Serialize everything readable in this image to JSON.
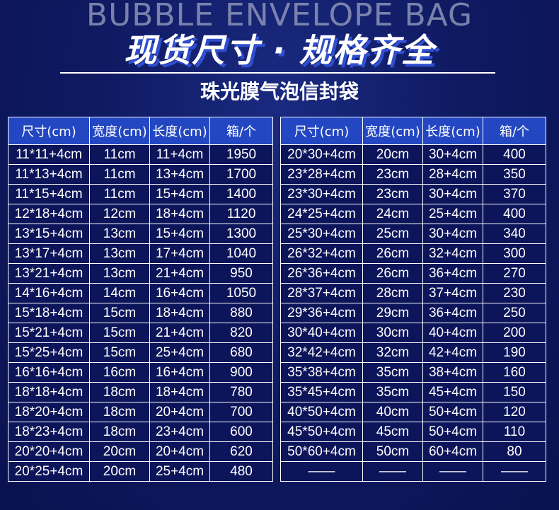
{
  "header": {
    "background_text": "BUBBLE ENVELOPE BAG",
    "title": "现货尺寸 · 规格齐全",
    "subtitle": "珠光膜气泡信封袋"
  },
  "columns": [
    "尺寸(cm)",
    "宽度(cm)",
    "长度(cm)",
    "箱/个"
  ],
  "left_table": [
    [
      "11*11+4cm",
      "11cm",
      "11+4cm",
      "1950"
    ],
    [
      "11*13+4cm",
      "11cm",
      "13+4cm",
      "1700"
    ],
    [
      "11*15+4cm",
      "11cm",
      "15+4cm",
      "1400"
    ],
    [
      "12*18+4cm",
      "12cm",
      "18+4cm",
      "1120"
    ],
    [
      "13*15+4cm",
      "13cm",
      "15+4cm",
      "1300"
    ],
    [
      "13*17+4cm",
      "13cm",
      "17+4cm",
      "1040"
    ],
    [
      "13*21+4cm",
      "13cm",
      "21+4cm",
      "950"
    ],
    [
      "14*16+4cm",
      "14cm",
      "16+4cm",
      "1050"
    ],
    [
      "15*18+4cm",
      "15cm",
      "18+4cm",
      "880"
    ],
    [
      "15*21+4cm",
      "15cm",
      "21+4cm",
      "820"
    ],
    [
      "15*25+4cm",
      "15cm",
      "25+4cm",
      "680"
    ],
    [
      "16*16+4cm",
      "16cm",
      "16+4cm",
      "900"
    ],
    [
      "18*18+4cm",
      "18cm",
      "18+4cm",
      "780"
    ],
    [
      "18*20+4cm",
      "18cm",
      "20+4cm",
      "700"
    ],
    [
      "18*23+4cm",
      "18cm",
      "23+4cm",
      "600"
    ],
    [
      "20*20+4cm",
      "20cm",
      "20+4cm",
      "620"
    ],
    [
      "20*25+4cm",
      "20cm",
      "25+4cm",
      "480"
    ]
  ],
  "right_table": [
    [
      "20*30+4cm",
      "20cm",
      "30+4cm",
      "400"
    ],
    [
      "23*28+4cm",
      "23cm",
      "28+4cm",
      "350"
    ],
    [
      "23*30+4cm",
      "23cm",
      "30+4cm",
      "370"
    ],
    [
      "24*25+4cm",
      "24cm",
      "25+4cm",
      "400"
    ],
    [
      "25*30+4cm",
      "25cm",
      "30+4cm",
      "340"
    ],
    [
      "26*32+4cm",
      "26cm",
      "32+4cm",
      "300"
    ],
    [
      "26*36+4cm",
      "26cm",
      "36+4cm",
      "270"
    ],
    [
      "28*37+4cm",
      "28cm",
      "37+4cm",
      "230"
    ],
    [
      "29*36+4cm",
      "29cm",
      "36+4cm",
      "250"
    ],
    [
      "30*40+4cm",
      "30cm",
      "40+4cm",
      "200"
    ],
    [
      "32*42+4cm",
      "32cm",
      "42+4cm",
      "190"
    ],
    [
      "35*38+4cm",
      "35cm",
      "38+4cm",
      "160"
    ],
    [
      "35*45+4cm",
      "35cm",
      "45+4cm",
      "150"
    ],
    [
      "40*50+4cm",
      "40cm",
      "50+4cm",
      "120"
    ],
    [
      "45*50+4cm",
      "45cm",
      "50+4cm",
      "110"
    ],
    [
      "50*60+4cm",
      "50cm",
      "60+4cm",
      "80"
    ],
    [
      "——",
      "——",
      "——",
      "——"
    ]
  ],
  "colors": {
    "header_cell": "#2347c2",
    "cell": "#0c145a",
    "title_shadow": "#2f4fd0"
  }
}
